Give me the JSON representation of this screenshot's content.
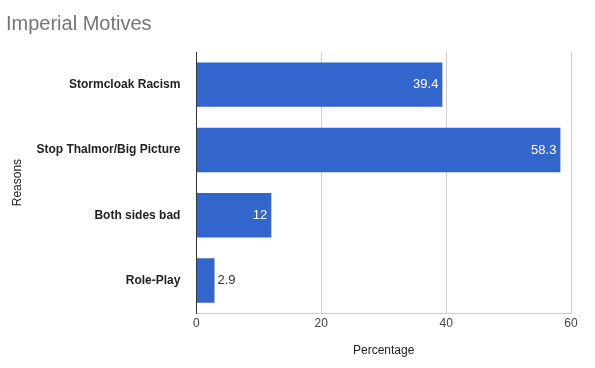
{
  "chart_data": {
    "type": "bar",
    "title": "Imperial Motives",
    "xlabel": "Percentage",
    "ylabel": "Reasons",
    "categories": [
      "Stormcloak Racism",
      "Stop Thalmor/Big Picture",
      "Both sides bad",
      "Role-Play"
    ],
    "values": [
      39.4,
      58.3,
      12,
      2.9
    ],
    "color": "#3366cc",
    "orientation": "horizontal",
    "xlim": [
      0,
      60
    ],
    "xticks": [
      0,
      20,
      40,
      60
    ],
    "grid": true,
    "data_labels": true
  }
}
